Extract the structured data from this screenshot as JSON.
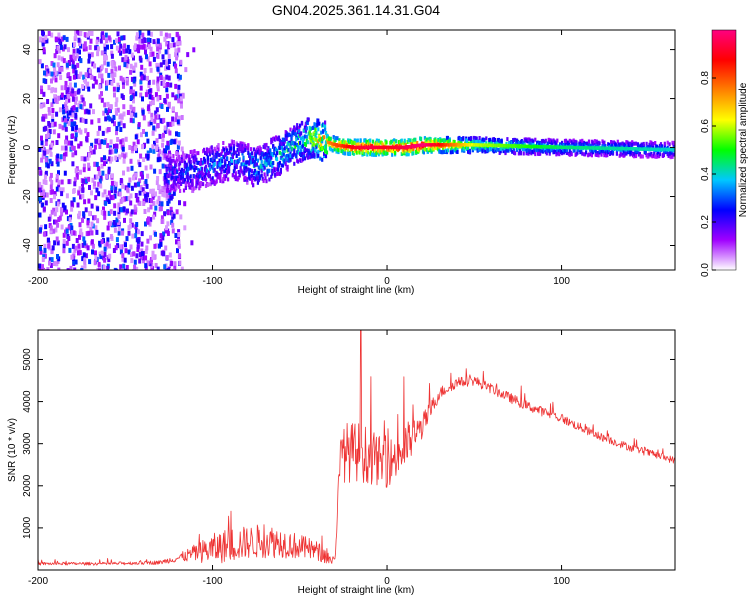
{
  "figure_title": "GN04.2025.361.14.31.G04",
  "chart_data": [
    {
      "type": "heatmap",
      "title": "GN04.2025.361.14.31.G04",
      "xlabel": "Height of straight line (km)",
      "ylabel": "Frequency (Hz)",
      "xlim": [
        -200,
        165
      ],
      "ylim": [
        -50,
        48
      ],
      "xticks": [
        -200,
        -100,
        0,
        100
      ],
      "yticks": [
        -40,
        -20,
        0,
        20,
        40
      ],
      "colorbar": {
        "label": "Normalized spectral amplitude",
        "range": [
          0,
          1
        ],
        "ticks": [
          "0.0",
          "0.2",
          "0.4",
          "0.6",
          "0.8"
        ],
        "colors": [
          "#ffffff",
          "#a000ff",
          "#0000ff",
          "#00c8ff",
          "#00ff00",
          "#ffff00",
          "#ff8000",
          "#ff0000",
          "#ff0080"
        ]
      },
      "ridge": {
        "x": [
          -128,
          -115,
          -100,
          -88,
          -75,
          -65,
          -55,
          -45,
          -38,
          -30,
          -20,
          -10,
          0,
          10,
          20,
          50,
          100,
          165
        ],
        "freq": [
          -10,
          -10,
          -7,
          -5,
          -8,
          -4,
          0,
          4,
          3,
          1,
          0,
          0,
          0,
          0,
          1,
          1,
          0,
          -1
        ],
        "amplitude": [
          0.25,
          0.3,
          0.35,
          0.35,
          0.4,
          0.4,
          0.45,
          0.55,
          0.7,
          0.8,
          0.9,
          0.95,
          0.9,
          0.95,
          1.0,
          0.6,
          0.45,
          0.4
        ]
      },
      "noise_region_x": [
        -200,
        -118
      ]
    },
    {
      "type": "line",
      "xlabel": "Height of straight line (km)",
      "ylabel": "SNR (10 * v/v)",
      "xlim": [
        -200,
        165
      ],
      "ylim": [
        0,
        5700
      ],
      "xticks": [
        -200,
        -100,
        0,
        100
      ],
      "yticks": [
        1000,
        2000,
        3000,
        4000,
        5000
      ],
      "line_color": "#ee3333",
      "envelope": {
        "x": [
          -200,
          -160,
          -130,
          -120,
          -110,
          -100,
          -90,
          -80,
          -70,
          -60,
          -50,
          -40,
          -30,
          -27,
          -25,
          -15,
          -10,
          -5,
          0,
          5,
          10,
          20,
          30,
          40,
          50,
          60,
          70,
          80,
          100,
          120,
          140,
          165
        ],
        "base": [
          150,
          150,
          180,
          280,
          400,
          500,
          600,
          650,
          700,
          650,
          550,
          450,
          200,
          2500,
          2800,
          2800,
          2700,
          2600,
          2500,
          2700,
          2900,
          3400,
          4200,
          4450,
          4500,
          4300,
          4100,
          3900,
          3600,
          3200,
          2900,
          2600
        ],
        "spread": [
          60,
          60,
          80,
          150,
          350,
          600,
          700,
          650,
          700,
          600,
          500,
          400,
          200,
          900,
          1200,
          1200,
          1100,
          1000,
          900,
          1000,
          1000,
          500,
          250,
          200,
          200,
          200,
          200,
          200,
          180,
          160,
          150,
          140
        ]
      },
      "annotations": {
        "peak_near_x": -15,
        "peak_value": 5700
      }
    }
  ]
}
